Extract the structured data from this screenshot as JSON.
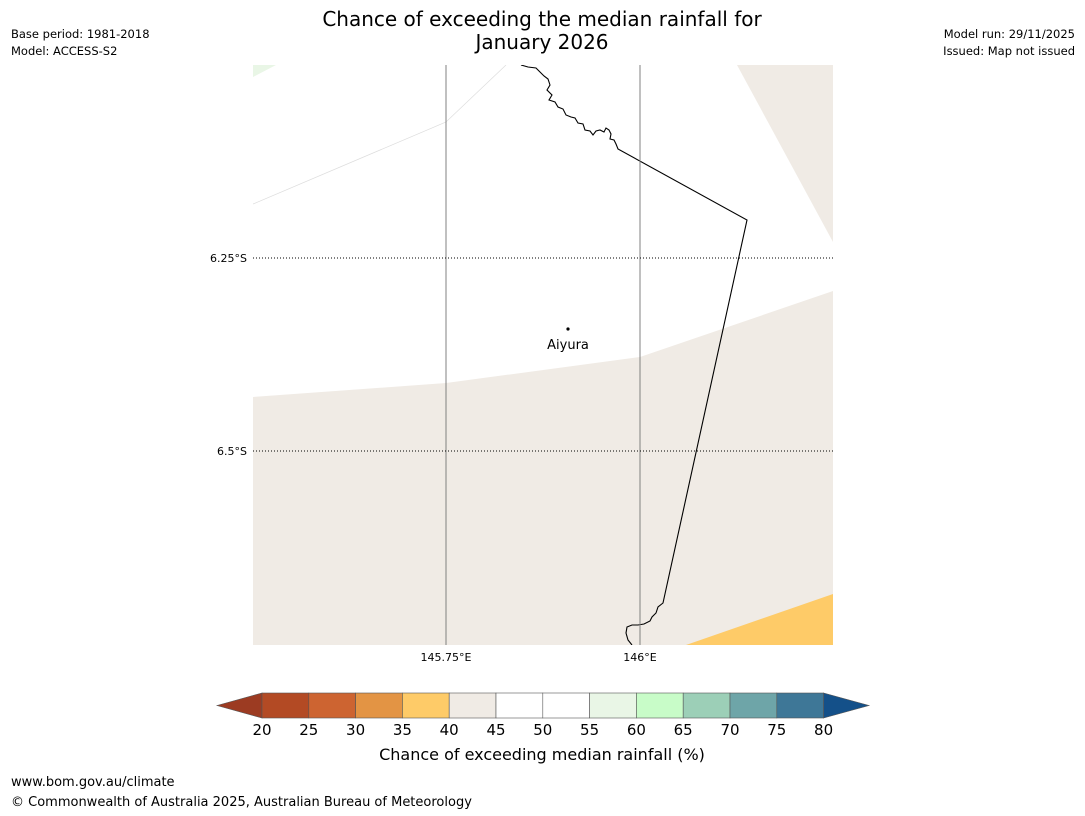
{
  "title": {
    "line1": "Chance of exceeding the median rainfall for",
    "line2": "January 2026"
  },
  "meta_left": {
    "base_period": "Base period: 1981-2018",
    "model": "Model: ACCESS-S2"
  },
  "meta_right": {
    "model_run": "Model run: 29/11/2025",
    "issued": "Issued: Map not issued"
  },
  "map": {
    "lat_labels": [
      "6.25°S",
      "6.5°S"
    ],
    "lon_labels": [
      "145.75°E",
      "146°E"
    ],
    "place": {
      "name": "Aiyura"
    }
  },
  "colors": {
    "c_lt20": "#9c3b22",
    "c20_25": "#b34a24",
    "c25_30": "#cd6431",
    "c30_35": "#e39444",
    "c35_40": "#fecb68",
    "c40_45": "#f0ebe5",
    "c45_50": "#ffffff",
    "c50_55": "#ffffff",
    "c55_60": "#e9f6e6",
    "c60_65": "#c8fcc8",
    "c65_70": "#9ccfb7",
    "c70_75": "#6ea5a8",
    "c75_80": "#3e7797",
    "c_gt80": "#145089"
  },
  "colorbar": {
    "ticks": [
      "20",
      "25",
      "30",
      "35",
      "40",
      "45",
      "50",
      "55",
      "60",
      "65",
      "70",
      "75",
      "80"
    ],
    "label": "Chance of exceeding median rainfall (%)"
  },
  "footer": {
    "url": "www.bom.gov.au/climate",
    "copyright": "© Commonwealth of Australia 2025, Australian Bureau of Meteorology"
  }
}
